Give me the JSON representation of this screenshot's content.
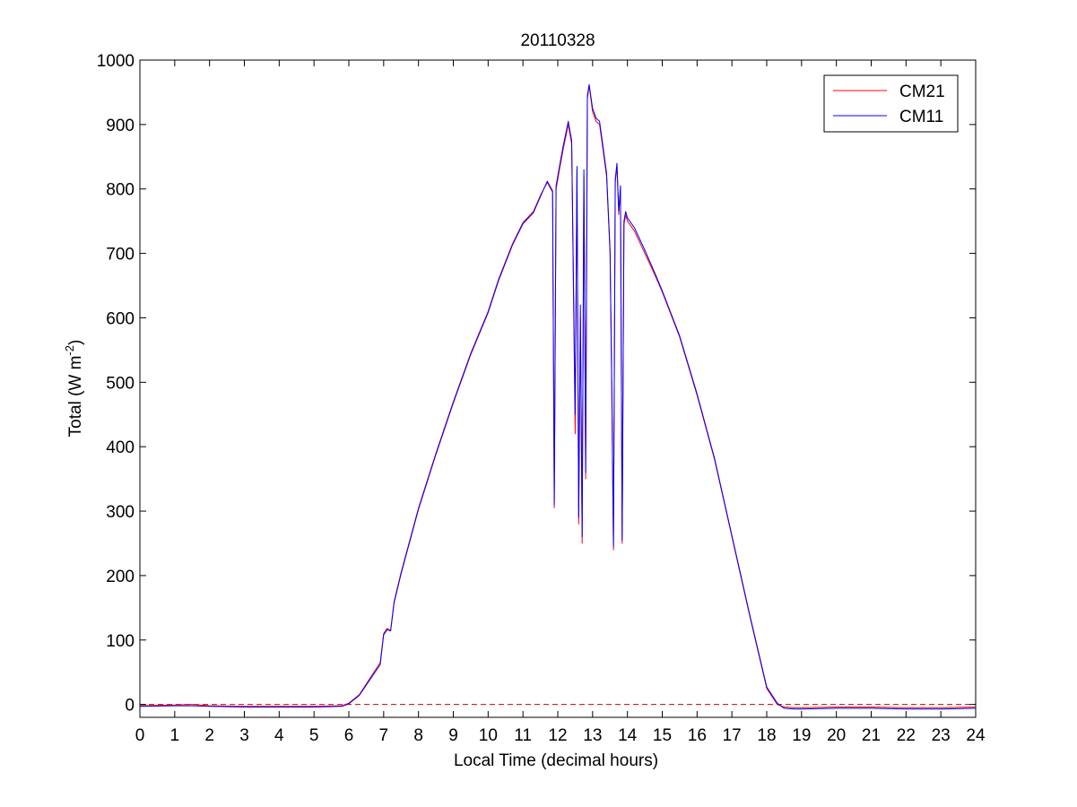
{
  "chart_data": {
    "type": "line",
    "title": "20110328",
    "xlabel": "Local Time (decimal hours)",
    "ylabel_main": "Total (W m",
    "ylabel_sup": "-2",
    "ylabel_close": ")",
    "xlim": [
      0,
      24
    ],
    "ylim": [
      -20,
      1000
    ],
    "x_ticks": [
      "0",
      "1",
      "2",
      "3",
      "4",
      "5",
      "6",
      "7",
      "8",
      "9",
      "10",
      "11",
      "12",
      "13",
      "14",
      "15",
      "16",
      "17",
      "18",
      "19",
      "20",
      "21",
      "22",
      "23",
      "24"
    ],
    "y_ticks": [
      "0",
      "100",
      "200",
      "300",
      "400",
      "500",
      "600",
      "700",
      "800",
      "900",
      "1000"
    ],
    "grid": false,
    "legend": {
      "position": "top-right",
      "entries": [
        "CM21",
        "CM11"
      ]
    },
    "reference_line": {
      "y": 0,
      "style": "dashed",
      "color": "#cc0000"
    },
    "series": [
      {
        "name": "CM21",
        "color": "#ff0000",
        "x": [
          0,
          1,
          1.5,
          2,
          3,
          4,
          5,
          5.8,
          6.0,
          6.3,
          6.6,
          6.9,
          7.0,
          7.1,
          7.2,
          7.3,
          7.5,
          8.0,
          8.5,
          9.0,
          9.5,
          10.0,
          10.3,
          10.7,
          11.0,
          11.3,
          11.5,
          11.7,
          11.85,
          11.9,
          11.95,
          12.05,
          12.15,
          12.3,
          12.4,
          12.5,
          12.55,
          12.6,
          12.65,
          12.7,
          12.75,
          12.8,
          12.85,
          12.9,
          13.0,
          13.1,
          13.2,
          13.3,
          13.4,
          13.5,
          13.55,
          13.6,
          13.65,
          13.7,
          13.75,
          13.8,
          13.85,
          13.9,
          13.95,
          14.0,
          14.2,
          14.5,
          14.8,
          15.0,
          15.5,
          16.0,
          16.5,
          17.0,
          17.5,
          18.0,
          18.3,
          18.5,
          18.8,
          19.0,
          20.0,
          21.0,
          22.0,
          23.0,
          24.0
        ],
        "y": [
          -2,
          -1,
          0,
          -2,
          -3,
          -3,
          -3,
          -2,
          2,
          15,
          40,
          65,
          110,
          118,
          115,
          160,
          205,
          305,
          390,
          470,
          545,
          610,
          660,
          715,
          748,
          765,
          790,
          810,
          795,
          305,
          800,
          830,
          860,
          900,
          870,
          420,
          830,
          280,
          600,
          250,
          820,
          350,
          940,
          960,
          920,
          905,
          900,
          860,
          820,
          700,
          490,
          240,
          810,
          835,
          760,
          800,
          250,
          745,
          760,
          750,
          735,
          700,
          665,
          640,
          570,
          480,
          380,
          260,
          140,
          25,
          0,
          -4,
          -5,
          -5,
          -4,
          -4,
          -5,
          -5,
          -4
        ]
      },
      {
        "name": "CM11",
        "color": "#0000ff",
        "x": [
          0,
          1,
          1.5,
          2,
          3,
          4,
          5,
          5.8,
          6.0,
          6.3,
          6.6,
          6.9,
          7.0,
          7.1,
          7.2,
          7.3,
          7.5,
          8.0,
          8.5,
          9.0,
          9.5,
          10.0,
          10.3,
          10.7,
          11.0,
          11.3,
          11.5,
          11.7,
          11.85,
          11.9,
          11.95,
          12.05,
          12.15,
          12.3,
          12.4,
          12.5,
          12.55,
          12.6,
          12.65,
          12.7,
          12.75,
          12.8,
          12.85,
          12.9,
          13.0,
          13.1,
          13.2,
          13.3,
          13.4,
          13.5,
          13.55,
          13.6,
          13.65,
          13.7,
          13.75,
          13.8,
          13.85,
          13.9,
          13.95,
          14.0,
          14.2,
          14.5,
          14.8,
          15.0,
          15.5,
          16.0,
          16.5,
          17.0,
          17.5,
          18.0,
          18.3,
          18.5,
          18.8,
          19.0,
          20.0,
          21.0,
          22.0,
          23.0,
          24.0
        ],
        "y": [
          -3,
          -2,
          -2,
          -3,
          -4,
          -4,
          -4,
          -3,
          1,
          14,
          38,
          62,
          108,
          116,
          114,
          158,
          203,
          303,
          388,
          468,
          543,
          608,
          658,
          713,
          746,
          763,
          788,
          812,
          797,
          310,
          805,
          835,
          865,
          905,
          875,
          450,
          835,
          290,
          620,
          260,
          830,
          360,
          945,
          962,
          925,
          910,
          905,
          865,
          825,
          705,
          500,
          245,
          815,
          840,
          765,
          805,
          255,
          750,
          765,
          755,
          740,
          705,
          668,
          642,
          572,
          482,
          382,
          262,
          142,
          27,
          2,
          -6,
          -7,
          -7,
          -6,
          -6,
          -7,
          -7,
          -6
        ]
      }
    ]
  }
}
